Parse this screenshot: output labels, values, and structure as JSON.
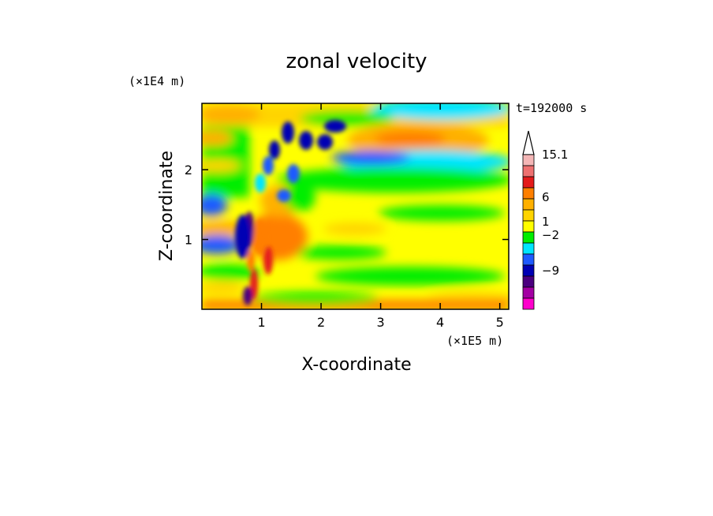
{
  "chart_data": {
    "type": "heatmap",
    "title": "zonal velocity",
    "xlabel": "X-coordinate",
    "ylabel": "Z-coordinate",
    "x_unit": "(×1E5 m)",
    "y_unit": "(×1E4 m)",
    "time_label": "t=192000 s",
    "xlim": [
      0,
      5.15
    ],
    "ylim": [
      0,
      2.95
    ],
    "x_ticks": [
      1,
      2,
      3,
      4,
      5
    ],
    "y_ticks": [
      1,
      2
    ],
    "colorbar": {
      "tick_labels": [
        "15.1",
        "6",
        "1",
        "−2",
        "−9"
      ],
      "colors_top_to_bottom": [
        "#ffffff",
        "#f4b6b6",
        "#ee7070",
        "#e41a1a",
        "#ff7f00",
        "#ffb000",
        "#ffd400",
        "#ffff00",
        "#00ee00",
        "#00e5ff",
        "#1e5aff",
        "#0000b4",
        "#4b007f",
        "#a300a3",
        "#ff00cc"
      ]
    },
    "field_regions": [
      {
        "desc": "surface layer",
        "value": 8,
        "x": [
          0,
          5.15
        ],
        "z": [
          0,
          0.15
        ]
      },
      {
        "desc": "mid-level weak flow",
        "value": 1,
        "x": [
          1.5,
          5.15
        ],
        "z": [
          0.3,
          2.0
        ]
      },
      {
        "desc": "upper jet",
        "value": 8,
        "x": [
          2.8,
          4.3
        ],
        "z": [
          2.3,
          2.6
        ]
      },
      {
        "desc": "wave train near x=0.8",
        "value": -9,
        "x": [
          0.6,
          1.0
        ],
        "z": [
          0.2,
          1.4
        ]
      }
    ]
  }
}
